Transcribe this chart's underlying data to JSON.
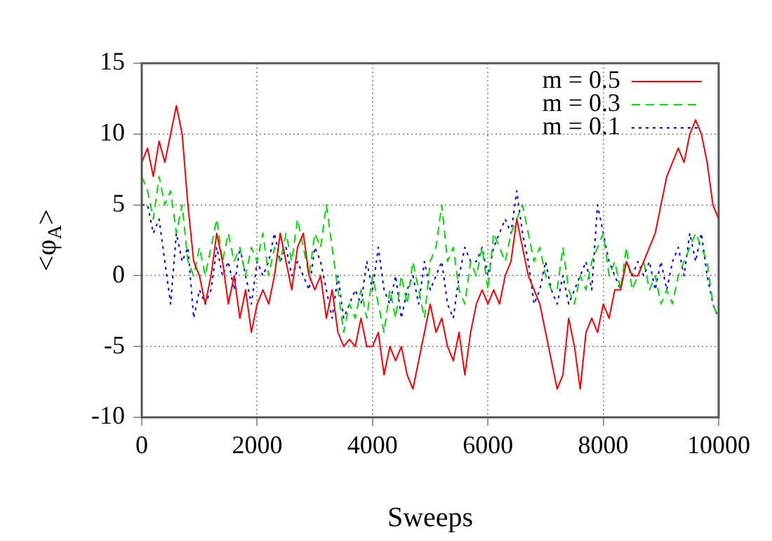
{
  "chart_data": {
    "type": "line",
    "xlabel": "Sweeps",
    "ylabel": "<φ$_{A}$>",
    "x": [
      0,
      100,
      200,
      300,
      400,
      500,
      600,
      700,
      800,
      900,
      1000,
      1100,
      1200,
      1300,
      1400,
      1500,
      1600,
      1700,
      1800,
      1900,
      2000,
      2100,
      2200,
      2300,
      2400,
      2500,
      2600,
      2700,
      2800,
      2900,
      3000,
      3100,
      3200,
      3300,
      3400,
      3500,
      3600,
      3700,
      3800,
      3900,
      4000,
      4100,
      4200,
      4300,
      4400,
      4500,
      4600,
      4700,
      4800,
      4900,
      5000,
      5100,
      5200,
      5300,
      5400,
      5500,
      5600,
      5700,
      5800,
      5900,
      6000,
      6100,
      6200,
      6300,
      6400,
      6500,
      6600,
      6700,
      6800,
      6900,
      7000,
      7100,
      7200,
      7300,
      7400,
      7500,
      7600,
      7700,
      7800,
      7900,
      8000,
      8100,
      8200,
      8300,
      8400,
      8500,
      8600,
      8700,
      8800,
      8900,
      9000,
      9100,
      9200,
      9300,
      9400,
      9500,
      9600,
      9700,
      9800,
      9900,
      10000
    ],
    "series": [
      {
        "name": "m = 0.5",
        "color": "#ff0000",
        "line_style": "solid",
        "values": [
          8,
          9,
          7,
          9.5,
          8,
          10,
          12,
          10,
          5,
          1,
          0,
          -2,
          0,
          3,
          1,
          -2,
          0,
          -3,
          -1,
          -4,
          -2,
          -1,
          -2,
          0,
          3,
          1,
          -1,
          2,
          3,
          0,
          -1,
          0,
          -3,
          -1,
          -4,
          -5,
          -4.5,
          -5,
          -3,
          -5,
          -5,
          -4,
          -7,
          -5,
          -6,
          -5,
          -7,
          -8,
          -6,
          -4,
          -2,
          -4,
          -3,
          -5,
          -6,
          -4,
          -7,
          -4,
          -2,
          -1,
          -2,
          -1,
          -2,
          0,
          1,
          4,
          2,
          0,
          -1,
          -2,
          -4,
          -6,
          -8,
          -7,
          -3,
          -5,
          -8,
          -4,
          -3,
          -4,
          -2,
          -3,
          -1,
          -1,
          1,
          0,
          0,
          1,
          2,
          3,
          5,
          7,
          8,
          9,
          8,
          10,
          11,
          10,
          8,
          5,
          4
        ]
      },
      {
        "name": "m = 0.3",
        "color": "#00dd00",
        "line_style": "dashed",
        "values": [
          7,
          6,
          4,
          7,
          5,
          6,
          3,
          5,
          1,
          0,
          2,
          0,
          2,
          4,
          1,
          3,
          1,
          2,
          0,
          2,
          1,
          3,
          0,
          2,
          1,
          3,
          1,
          4,
          2,
          0,
          3,
          2,
          5,
          2,
          -1,
          -4,
          -2,
          -3,
          -1,
          -3,
          0,
          -2,
          -4,
          -1,
          -3,
          0,
          -2,
          1,
          -1,
          -3,
          1,
          2,
          5,
          1,
          2,
          -1,
          -2,
          1,
          0,
          2,
          -1,
          3,
          2,
          1,
          3,
          4,
          5,
          3,
          1,
          2,
          0,
          -1,
          -1,
          2,
          -1,
          -2,
          0,
          -1,
          1,
          2,
          3,
          0,
          1,
          -1,
          2,
          -1,
          0,
          1,
          -1,
          0,
          -2,
          -1,
          -2,
          0,
          1,
          2,
          3,
          2,
          1,
          -2,
          -3
        ]
      },
      {
        "name": "m = 0.1",
        "color": "#0000ff",
        "line_style": "dotted",
        "values": [
          5,
          5,
          3,
          4,
          1,
          -2,
          3,
          1,
          2,
          -3,
          -1,
          -2,
          -1,
          2,
          0,
          1,
          -1,
          2,
          0,
          -2,
          1,
          0,
          1,
          3,
          1,
          2,
          0,
          1,
          0,
          -1,
          2,
          1,
          -1,
          -3,
          0,
          -3,
          -2,
          -1,
          -2,
          1,
          -1,
          2,
          -1,
          -2,
          0,
          -3,
          -1,
          0,
          -2,
          1,
          -1,
          0,
          1,
          -2,
          -3,
          0,
          2,
          1,
          1,
          2,
          0,
          2,
          3,
          4,
          3,
          6,
          3,
          1,
          -2,
          -1,
          1,
          -1,
          -2,
          0,
          -2,
          -1,
          0,
          1,
          -1,
          5,
          3,
          1,
          0,
          -1,
          1,
          0,
          1,
          0,
          1,
          -1,
          1,
          -1,
          1,
          2,
          0,
          3,
          1,
          3,
          0,
          -2,
          -3
        ]
      }
    ],
    "xlim": [
      0,
      10000
    ],
    "xticks": [
      0,
      2000,
      4000,
      6000,
      8000,
      10000
    ],
    "ylim": [
      -10,
      15
    ],
    "yticks": [
      -10,
      -5,
      0,
      5,
      10,
      15
    ],
    "grid": true,
    "legend": "top right",
    "marker": "none"
  }
}
